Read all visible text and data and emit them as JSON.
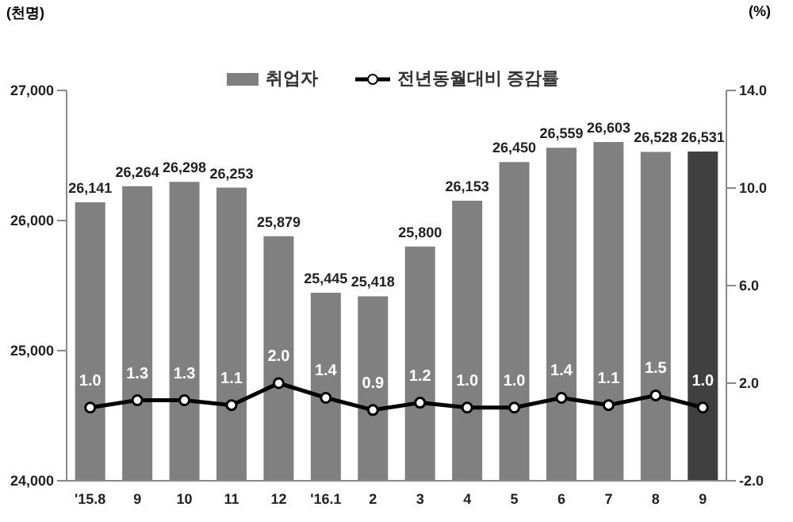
{
  "chart_data": {
    "type": "bar",
    "ylabel": "(천명)",
    "y2label": "(%)",
    "categories": [
      "'15.8",
      "9",
      "10",
      "11",
      "12",
      "'16.1",
      "2",
      "3",
      "4",
      "5",
      "6",
      "7",
      "8",
      "9"
    ],
    "series": [
      {
        "name": "취업자",
        "color": "#808080",
        "colors": [
          "#808080",
          "#808080",
          "#808080",
          "#808080",
          "#808080",
          "#808080",
          "#808080",
          "#808080",
          "#808080",
          "#808080",
          "#808080",
          "#808080",
          "#808080",
          "#404040"
        ],
        "values": [
          26141,
          26264,
          26298,
          26253,
          25879,
          25445,
          25418,
          25800,
          26153,
          26450,
          26559,
          26603,
          26528,
          26531
        ],
        "value_labels": [
          "26,141",
          "26,264",
          "26,298",
          "26,253",
          "25,879",
          "25,445",
          "25,418",
          "25,800",
          "26,153",
          "26,450",
          "26,559",
          "26,603",
          "26,528",
          "26,531"
        ]
      },
      {
        "name": "전년동월대비 증감률",
        "type": "line",
        "axis": "y2",
        "color": "#000000",
        "marker": "circle",
        "values": [
          1.0,
          1.3,
          1.3,
          1.1,
          2.0,
          1.4,
          0.9,
          1.2,
          1.0,
          1.0,
          1.4,
          1.1,
          1.5,
          1.0
        ],
        "value_labels": [
          "1.0",
          "1.3",
          "1.3",
          "1.1",
          "2.0",
          "1.4",
          "0.9",
          "1.2",
          "1.0",
          "1.0",
          "1.4",
          "1.1",
          "1.5",
          "1.0"
        ]
      }
    ],
    "ylim": [
      24000,
      27000
    ],
    "yticks": [
      {
        "value": 24000,
        "label": "24,000"
      },
      {
        "value": 25000,
        "label": "25,000"
      },
      {
        "value": 26000,
        "label": "26,000"
      },
      {
        "value": 27000,
        "label": "27,000"
      }
    ],
    "y2lim": [
      -2.0,
      14.0
    ],
    "y2ticks": [
      {
        "value": -2,
        "label": "-2.0"
      },
      {
        "value": 2,
        "label": "2.0"
      },
      {
        "value": 6,
        "label": "6.0"
      },
      {
        "value": 10,
        "label": "10.0"
      },
      {
        "value": 14,
        "label": "14.0"
      }
    ],
    "grid": false,
    "legend": "top"
  }
}
